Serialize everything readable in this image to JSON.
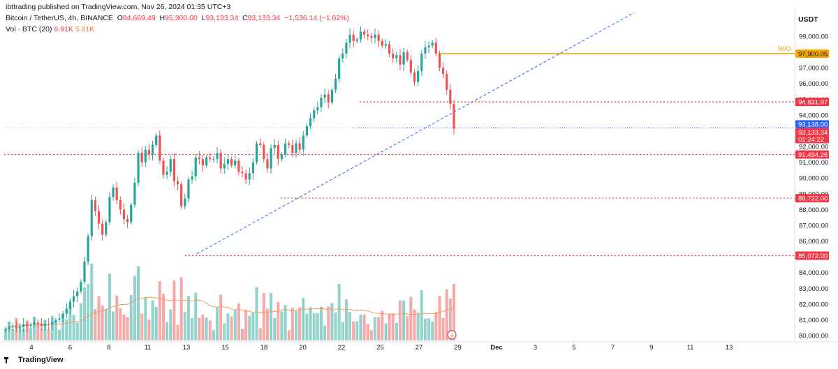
{
  "header": {
    "publisher_line": "ibttrading published on TradingView.com, Nov 26, 2024 01:35 UTC+3",
    "symbol": "Bitcoin / TetherUS, 4h, BINANCE",
    "o_label": "O",
    "o_value": "94,669.49",
    "h_label": "H",
    "h_value": "95,300.00",
    "l_label": "L",
    "l_value": "93,133.34",
    "c_label": "C",
    "c_value": "93,133.34",
    "change": "−1,536.14 (−1.62%)",
    "vol_label": "Vol · BTC (20)",
    "vol_value": "6.91K",
    "vol_ma_value": "5.81K"
  },
  "currency": "USDT",
  "brand": "TradingView",
  "colors": {
    "up": "#26a69a",
    "down": "#ef5350",
    "up_vol": "#92d2cc",
    "down_vol": "#f7a9a7",
    "level": "#f23645",
    "current": "#2962ff",
    "wo": "#f7a600",
    "vol_ma": "#f59a5b"
  },
  "chart_data": {
    "type": "candlestick",
    "timeframe": "4h",
    "ylim": [
      79600,
      100500
    ],
    "y_ticks": [
      80000,
      81000,
      82000,
      83000,
      84000,
      85000,
      86000,
      87000,
      88000,
      89000,
      90000,
      91000,
      92000,
      93000,
      94000,
      95000,
      96000,
      97000,
      98000,
      99000
    ],
    "y_tick_labels": [
      "80,000.00",
      "81,000.00",
      "82,000.00",
      "83,000.00",
      "84,000.00",
      "85,000.00",
      "86,000.00",
      "87,000.00",
      "88,000.00",
      "89,000.00",
      "90,000.00",
      "91,000.00",
      "92,000.00",
      "93,000.00",
      "94,000.00",
      "95,000.00",
      "96,000.00",
      "97,000.00",
      "98,000.00",
      "99,000.00"
    ],
    "x_ticks": [
      "4",
      "6",
      "8",
      "11",
      "13",
      "15",
      "18",
      "20",
      "22",
      "25",
      "27",
      "29",
      "Dec",
      "3",
      "5",
      "7",
      "9",
      "11",
      "13"
    ],
    "candle_closes": [
      80420,
      80530,
      80600,
      80480,
      80550,
      80720,
      80610,
      80690,
      80830,
      80750,
      80600,
      80720,
      80700,
      80840,
      80990,
      81080,
      81380,
      81700,
      82150,
      82500,
      82800,
      83400,
      84700,
      86300,
      88600,
      87900,
      87100,
      86400,
      87200,
      88800,
      89400,
      88600,
      88000,
      87400,
      87200,
      88300,
      89700,
      91600,
      91000,
      91800,
      91500,
      92100,
      92700,
      91100,
      90200,
      90400,
      91200,
      89800,
      89600,
      88200,
      88700,
      89900,
      90100,
      91300,
      91200,
      90800,
      91300,
      91200,
      91200,
      91600,
      90600,
      90900,
      91200,
      90800,
      91100,
      90400,
      90300,
      89900,
      90300,
      91000,
      92200,
      92100,
      91200,
      90600,
      91900,
      92100,
      91200,
      91500,
      92200,
      92100,
      91600,
      92200,
      91800,
      92700,
      93300,
      93800,
      94300,
      94500,
      95100,
      95300,
      94800,
      95600,
      96300,
      97600,
      97900,
      98600,
      99100,
      98700,
      98800,
      99300,
      99100,
      99000,
      98900,
      99100,
      98700,
      98400,
      98500,
      97900,
      97600,
      97800,
      97200,
      98000,
      97500,
      96700,
      96100,
      96800,
      97900,
      98300,
      98400,
      98600,
      97900,
      97000,
      96600,
      95600,
      94700,
      93133
    ],
    "levels": [
      {
        "label": "W/O",
        "value": "97,900.05",
        "y": 97900.05,
        "color": "#f7a600"
      },
      {
        "value": "94,831.97",
        "y": 94831.97,
        "color": "#f23645"
      },
      {
        "value": "91,494.26",
        "y": 91494.26,
        "color": "#f23645"
      },
      {
        "value": "88,722.00",
        "y": 88722.0,
        "color": "#f23645"
      },
      {
        "value": "85,072.00",
        "y": 85072.0,
        "color": "#f23645"
      }
    ],
    "current_price": {
      "value": "93,138.00",
      "y": 93138.0
    },
    "last_price": {
      "value": "93,133.34",
      "countdown": "01:24:22",
      "y": 93133.34
    },
    "trendline": {
      "from": {
        "x_index": 21,
        "y": 85100
      },
      "to": {
        "x_index": 200,
        "y": 100500
      }
    },
    "volume": {
      "last": 6.91,
      "ma": 5.81,
      "unit": "K"
    }
  }
}
